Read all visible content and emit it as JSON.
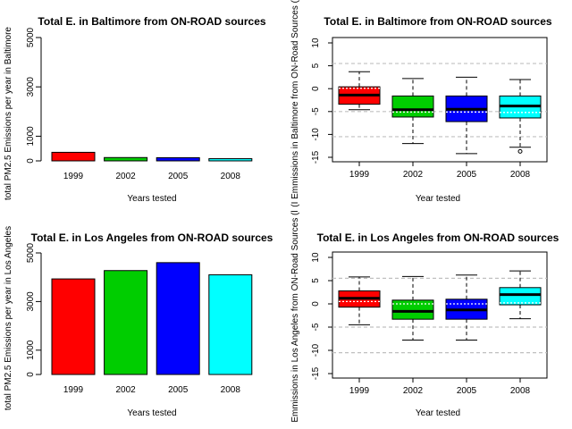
{
  "chart_data": [
    {
      "type": "bar",
      "title": "Total E. in Baltimore from ON-ROAD sources",
      "xlabel": "Years tested",
      "ylabel": "total PM2.5 Emissions per year in Baltimore",
      "categories": [
        "1999",
        "2002",
        "2005",
        "2008"
      ],
      "values": [
        347,
        135,
        130,
        89
      ],
      "colors": [
        "#ff0000",
        "#00cd00",
        "#0000ff",
        "#00ffff"
      ],
      "ylim": [
        0,
        5000
      ],
      "yticks": [
        0,
        1000,
        3000,
        5000
      ]
    },
    {
      "type": "box",
      "title": "Total E. in Baltimore from ON-ROAD sources",
      "xlabel": "Year tested",
      "ylabel": "(I Emmissions in Baltimore from ON-Road Sources (lo",
      "categories": [
        "1999",
        "2002",
        "2005",
        "2008"
      ],
      "colors": [
        "#ff0000",
        "#00cd00",
        "#0000ff",
        "#00ffff"
      ],
      "ylim": [
        -15,
        10
      ],
      "yticks": [
        -15,
        -10,
        -5,
        0,
        5,
        10
      ],
      "grid_lines": [
        -10.5,
        -5,
        5.5
      ],
      "boxes": [
        {
          "whisker_low": -4.6,
          "q1": -3.4,
          "median": -1.4,
          "q3": 0.4,
          "whisker_high": 3.7,
          "mean": 0.1,
          "outliers": []
        },
        {
          "whisker_low": -12.0,
          "q1": -6.2,
          "median": -4.6,
          "q3": -1.6,
          "whisker_high": 2.2,
          "mean": -5.1,
          "outliers": []
        },
        {
          "whisker_low": -14.2,
          "q1": -7.2,
          "median": -4.5,
          "q3": -1.6,
          "whisker_high": 2.5,
          "mean": -5.1,
          "outliers": []
        },
        {
          "whisker_low": -12.8,
          "q1": -6.4,
          "median": -3.8,
          "q3": -1.6,
          "whisker_high": 2.0,
          "mean": -5.2,
          "outliers": [
            -13.7
          ]
        }
      ]
    },
    {
      "type": "bar",
      "title": "Total E. in Los Angeles from ON-ROAD sources",
      "xlabel": "Years tested",
      "ylabel": "total PM2.5 Emissions per year in Los Angeles",
      "categories": [
        "1999",
        "2002",
        "2005",
        "2008"
      ],
      "values": [
        3931,
        4274,
        4601,
        4101
      ],
      "colors": [
        "#ff0000",
        "#00cd00",
        "#0000ff",
        "#00ffff"
      ],
      "ylim": [
        0,
        5000
      ],
      "yticks": [
        0,
        1000,
        3000,
        5000
      ]
    },
    {
      "type": "box",
      "title": "Total E. in Los Angeles from ON-ROAD sources",
      "xlabel": "Year tested",
      "ylabel": "Emmissions in Los Angeles from ON-Road Sources (l",
      "categories": [
        "1999",
        "2002",
        "2005",
        "2008"
      ],
      "colors": [
        "#ff0000",
        "#00cd00",
        "#0000ff",
        "#00ffff"
      ],
      "ylim": [
        -15,
        10
      ],
      "yticks": [
        -15,
        -10,
        -5,
        0,
        5,
        10
      ],
      "grid_lines": [
        -10.5,
        -5,
        5.5
      ],
      "boxes": [
        {
          "whisker_low": -4.5,
          "q1": -0.7,
          "median": 1.2,
          "q3": 2.8,
          "whisker_high": 5.8,
          "mean": 0.5,
          "outliers": []
        },
        {
          "whisker_low": -7.8,
          "q1": -3.3,
          "median": -1.6,
          "q3": 0.8,
          "whisker_high": 5.9,
          "mean": 0.0,
          "outliers": []
        },
        {
          "whisker_low": -7.8,
          "q1": -3.3,
          "median": -1.3,
          "q3": 1.0,
          "whisker_high": 6.2,
          "mean": 0.0,
          "outliers": []
        },
        {
          "whisker_low": -3.2,
          "q1": -0.2,
          "median": 2.0,
          "q3": 3.5,
          "whisker_high": 7.1,
          "mean": 0.2,
          "outliers": []
        }
      ]
    }
  ]
}
